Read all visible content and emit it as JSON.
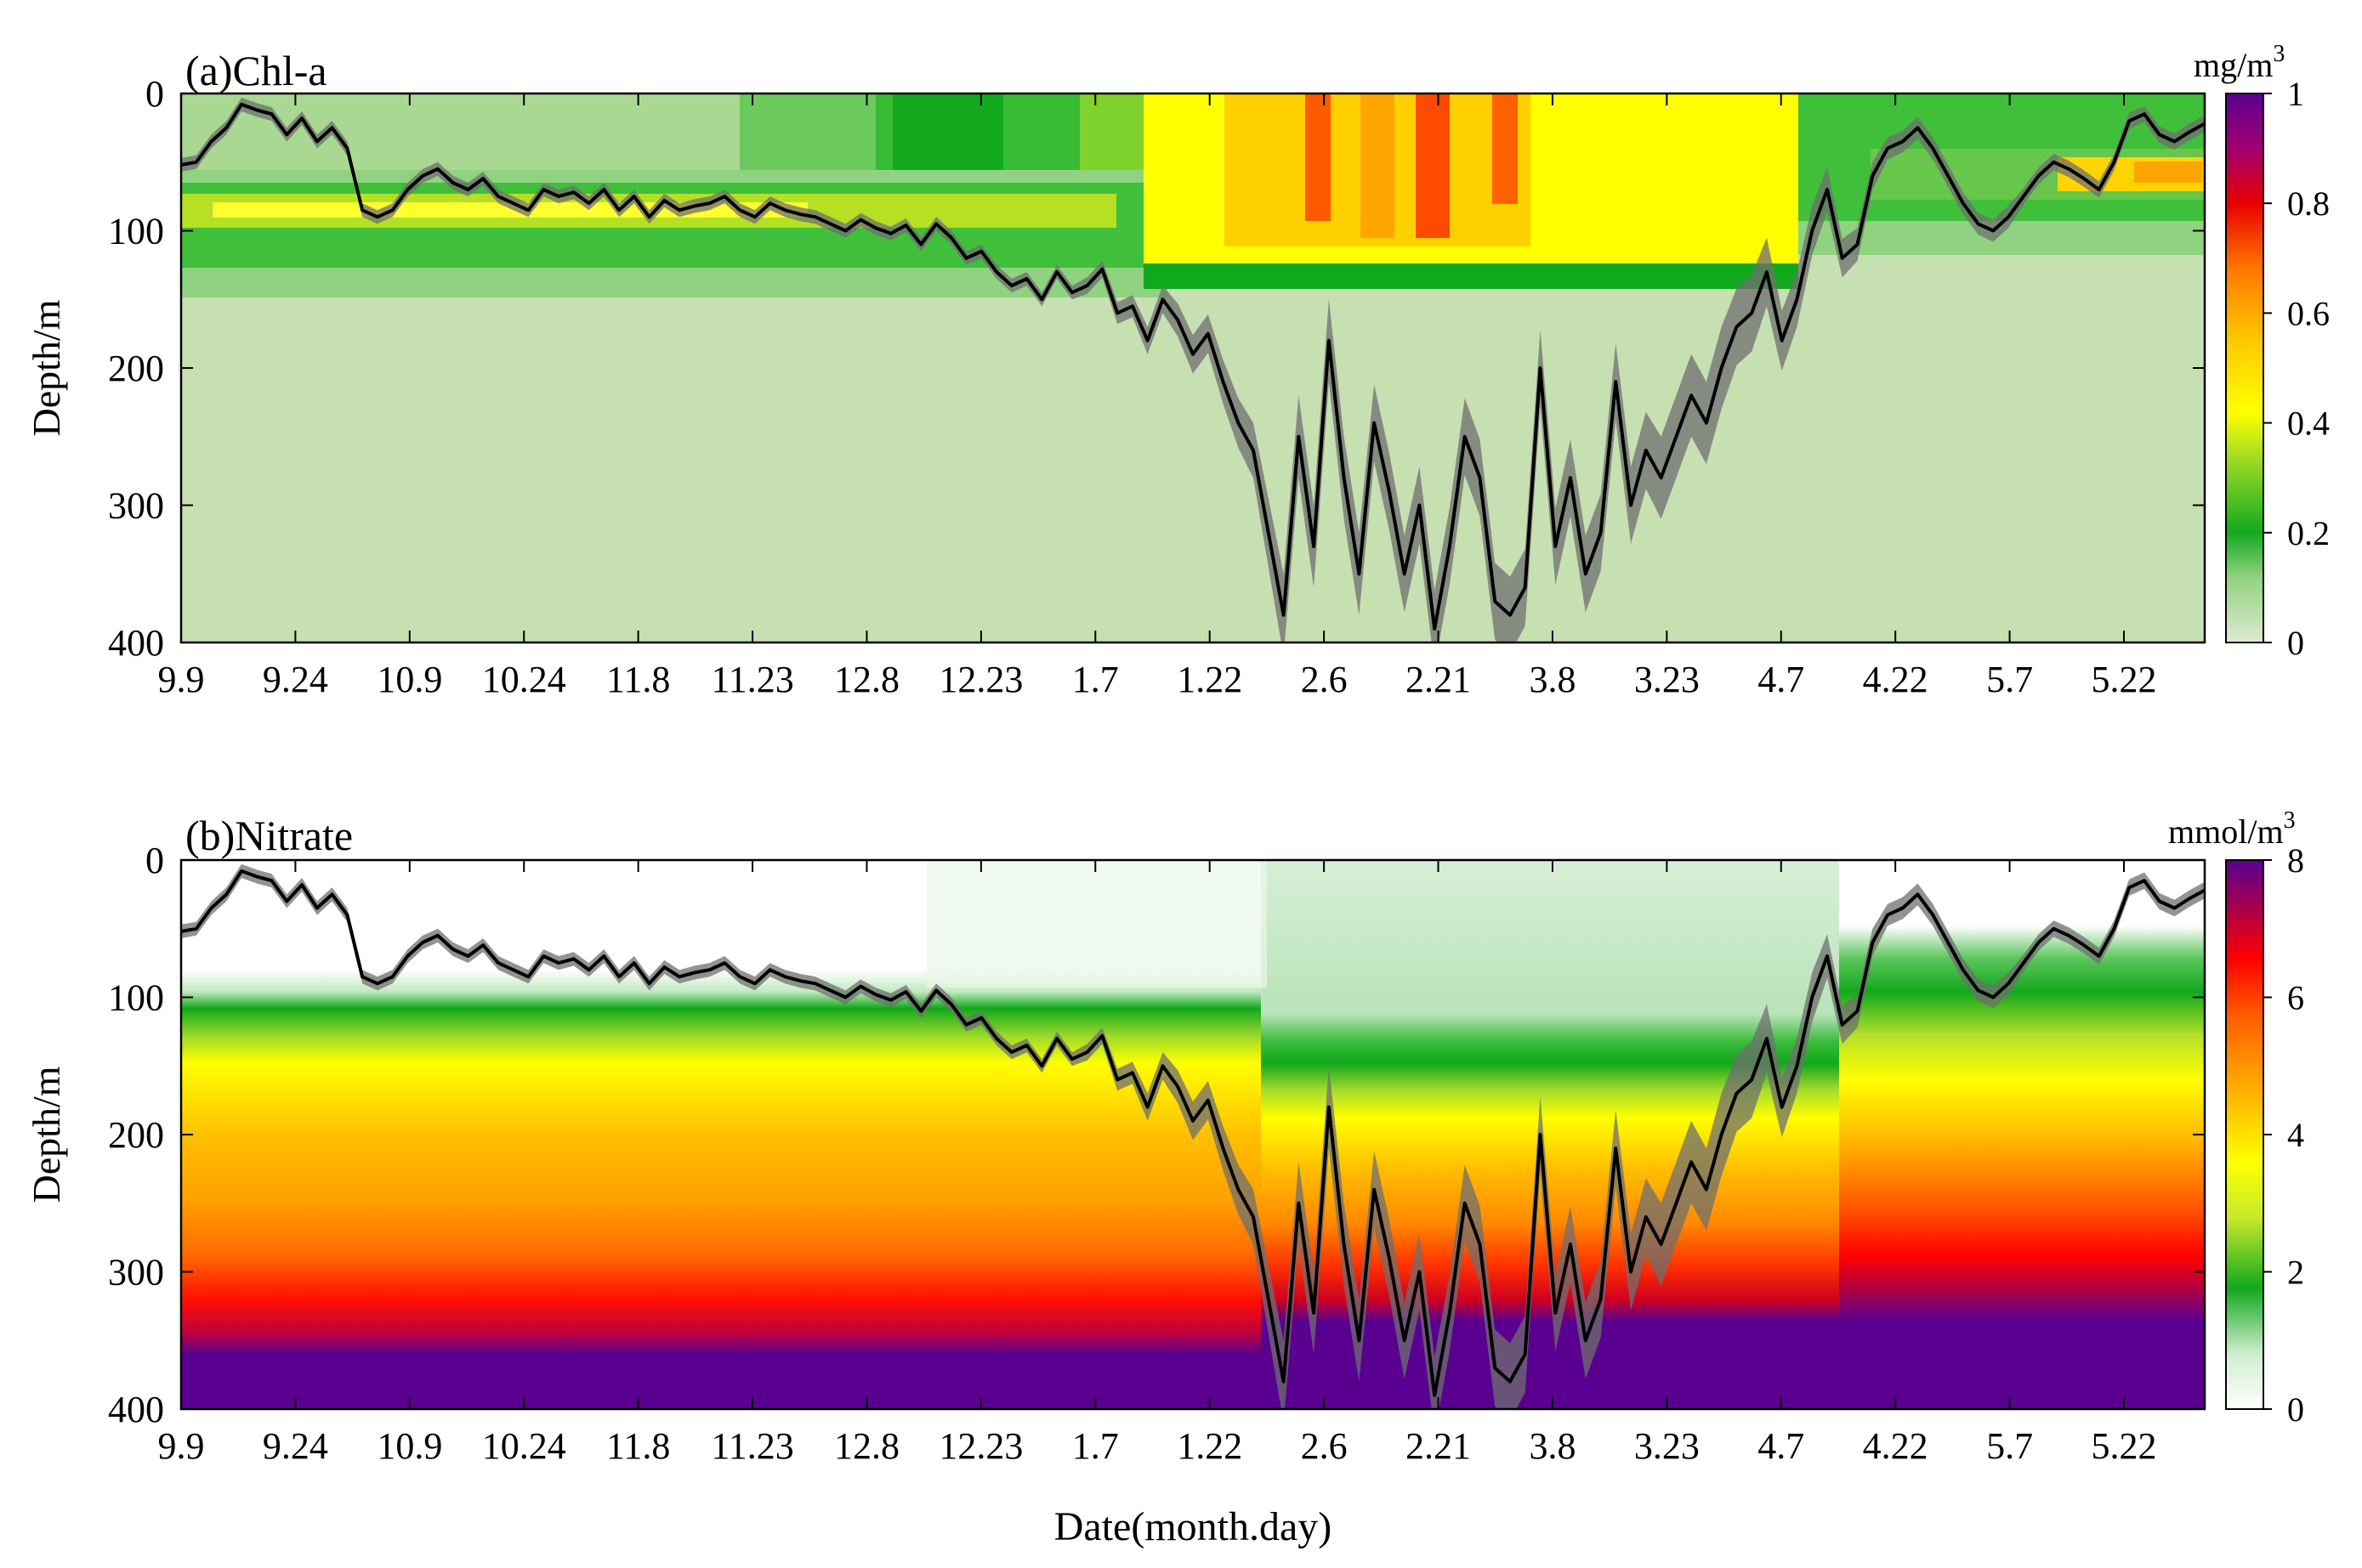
{
  "figure": {
    "xlabel": "Date(month.day)",
    "colors": {
      "chl": [
        "#c6dfb1",
        "#8fd27f",
        "#3fbf3a",
        "#10a91e",
        "#66c74c",
        "#b6e023",
        "#ffff00",
        "#ffd400",
        "#ffa500",
        "#ff4a00",
        "#e80000",
        "#9a0072",
        "#5a0090"
      ],
      "nitrate": [
        "#ffffff",
        "#cfeecf",
        "#7ad47a",
        "#12a81c",
        "#66c94a",
        "#d9ee2a",
        "#ffff00",
        "#ffcc00",
        "#ffa000",
        "#ff5a00",
        "#ff0000",
        "#b00040",
        "#5a0090"
      ],
      "mld_line": "#000000",
      "mld_band": "#6f6f6f"
    }
  },
  "chart_data": [
    {
      "type": "heatmap",
      "panel_label": "(a)Chl-a",
      "variable": "Chl-a",
      "colorbar_unit": "mg/m",
      "colorbar_unit_sup": "3",
      "colorbar_range": [
        0,
        1
      ],
      "colorbar_ticks": [
        "0",
        "0.2",
        "0.4",
        "0.6",
        "0.8",
        "1"
      ],
      "ylabel": "Depth/m",
      "ylim": [
        0,
        400
      ],
      "y_inverted": true,
      "yticks": [
        "0",
        "100",
        "200",
        "300",
        "400"
      ],
      "xticks": [
        "9.9",
        "9.24",
        "10.9",
        "10.24",
        "11.8",
        "11.23",
        "12.8",
        "12.23",
        "1.7",
        "1.22",
        "2.6",
        "2.21",
        "3.8",
        "3.23",
        "4.7",
        "4.22",
        "5.7",
        "5.22"
      ],
      "x_day_range": [
        0,
        268
      ],
      "mixed_layer_depth": {
        "day": [
          0,
          2,
          4,
          6,
          8,
          10,
          12,
          14,
          16,
          18,
          20,
          22,
          24,
          26,
          28,
          30,
          32,
          34,
          36,
          38,
          40,
          42,
          44,
          46,
          48,
          50,
          52,
          54,
          56,
          58,
          60,
          62,
          64,
          66,
          68,
          70,
          72,
          74,
          76,
          78,
          80,
          82,
          84,
          86,
          88,
          90,
          92,
          94,
          96,
          98,
          100,
          102,
          104,
          106,
          108,
          110,
          112,
          114,
          116,
          118,
          120,
          122,
          124,
          126,
          128,
          130,
          132,
          134,
          136,
          138,
          140,
          142,
          144,
          146,
          148,
          150,
          152,
          154,
          156,
          158,
          160,
          162,
          164,
          166,
          168,
          170,
          172,
          174,
          176,
          178,
          180,
          182,
          184,
          186,
          188,
          190,
          192,
          194,
          196,
          198,
          200,
          202,
          204,
          206,
          208,
          210,
          212,
          214,
          216,
          218,
          220,
          222,
          224,
          226,
          228,
          230,
          232,
          234,
          236,
          238,
          240,
          242,
          244,
          246,
          248,
          250,
          252,
          254,
          256,
          258,
          260,
          262,
          264,
          266,
          268
        ],
        "depth": [
          52,
          50,
          35,
          25,
          8,
          12,
          15,
          30,
          18,
          35,
          25,
          40,
          85,
          90,
          85,
          70,
          60,
          55,
          65,
          70,
          62,
          75,
          80,
          85,
          70,
          75,
          72,
          80,
          70,
          85,
          75,
          90,
          78,
          85,
          82,
          80,
          75,
          85,
          90,
          80,
          85,
          88,
          90,
          95,
          100,
          92,
          98,
          102,
          96,
          110,
          95,
          105,
          120,
          115,
          130,
          140,
          135,
          150,
          130,
          145,
          140,
          128,
          160,
          155,
          180,
          150,
          165,
          190,
          175,
          210,
          240,
          260,
          320,
          380,
          250,
          330,
          180,
          280,
          350,
          240,
          290,
          350,
          300,
          390,
          330,
          250,
          280,
          370,
          380,
          360,
          200,
          330,
          280,
          350,
          320,
          210,
          300,
          260,
          280,
          250,
          220,
          240,
          200,
          170,
          160,
          130,
          180,
          150,
          100,
          70,
          120,
          110,
          60,
          40,
          35,
          25,
          40,
          60,
          80,
          95,
          100,
          90,
          75,
          60,
          50,
          55,
          62,
          70,
          50,
          20,
          15,
          30,
          35,
          28,
          22
        ],
        "band_halfwidth": [
          5,
          5,
          5,
          5,
          5,
          5,
          5,
          5,
          5,
          5,
          5,
          5,
          5,
          5,
          5,
          5,
          5,
          5,
          5,
          5,
          5,
          5,
          5,
          5,
          5,
          5,
          5,
          5,
          5,
          5,
          5,
          5,
          5,
          5,
          5,
          5,
          5,
          5,
          5,
          5,
          5,
          5,
          5,
          5,
          5,
          5,
          5,
          5,
          5,
          5,
          5,
          5,
          5,
          5,
          5,
          5,
          5,
          5,
          5,
          5,
          6,
          6,
          8,
          8,
          10,
          10,
          12,
          14,
          14,
          16,
          18,
          20,
          25,
          30,
          30,
          30,
          30,
          30,
          30,
          28,
          28,
          28,
          28,
          28,
          28,
          28,
          28,
          28,
          28,
          28,
          28,
          28,
          28,
          28,
          28,
          28,
          28,
          28,
          30,
          30,
          30,
          30,
          30,
          28,
          28,
          25,
          22,
          20,
          18,
          16,
          14,
          12,
          10,
          8,
          8,
          8,
          8,
          8,
          8,
          8,
          8,
          8,
          6,
          6,
          6,
          6,
          6,
          6,
          6,
          6,
          6,
          6,
          6,
          6,
          6
        ]
      }
    },
    {
      "type": "heatmap",
      "panel_label": "(b)Nitrate",
      "variable": "Nitrate",
      "colorbar_unit": "mmol/m",
      "colorbar_unit_sup": "3",
      "colorbar_range": [
        0,
        8
      ],
      "colorbar_ticks": [
        "0",
        "2",
        "4",
        "6",
        "8"
      ],
      "ylabel": "Depth/m",
      "ylim": [
        0,
        400
      ],
      "y_inverted": true,
      "yticks": [
        "0",
        "100",
        "200",
        "300",
        "400"
      ],
      "xticks": [
        "9.9",
        "9.24",
        "10.9",
        "10.24",
        "11.8",
        "11.23",
        "12.8",
        "12.23",
        "1.7",
        "1.22",
        "2.6",
        "2.21",
        "3.8",
        "3.23",
        "4.7",
        "4.22",
        "5.7",
        "5.22"
      ],
      "x_day_range": [
        0,
        268
      ],
      "mixed_layer_depth": "same as panel (a)"
    }
  ]
}
